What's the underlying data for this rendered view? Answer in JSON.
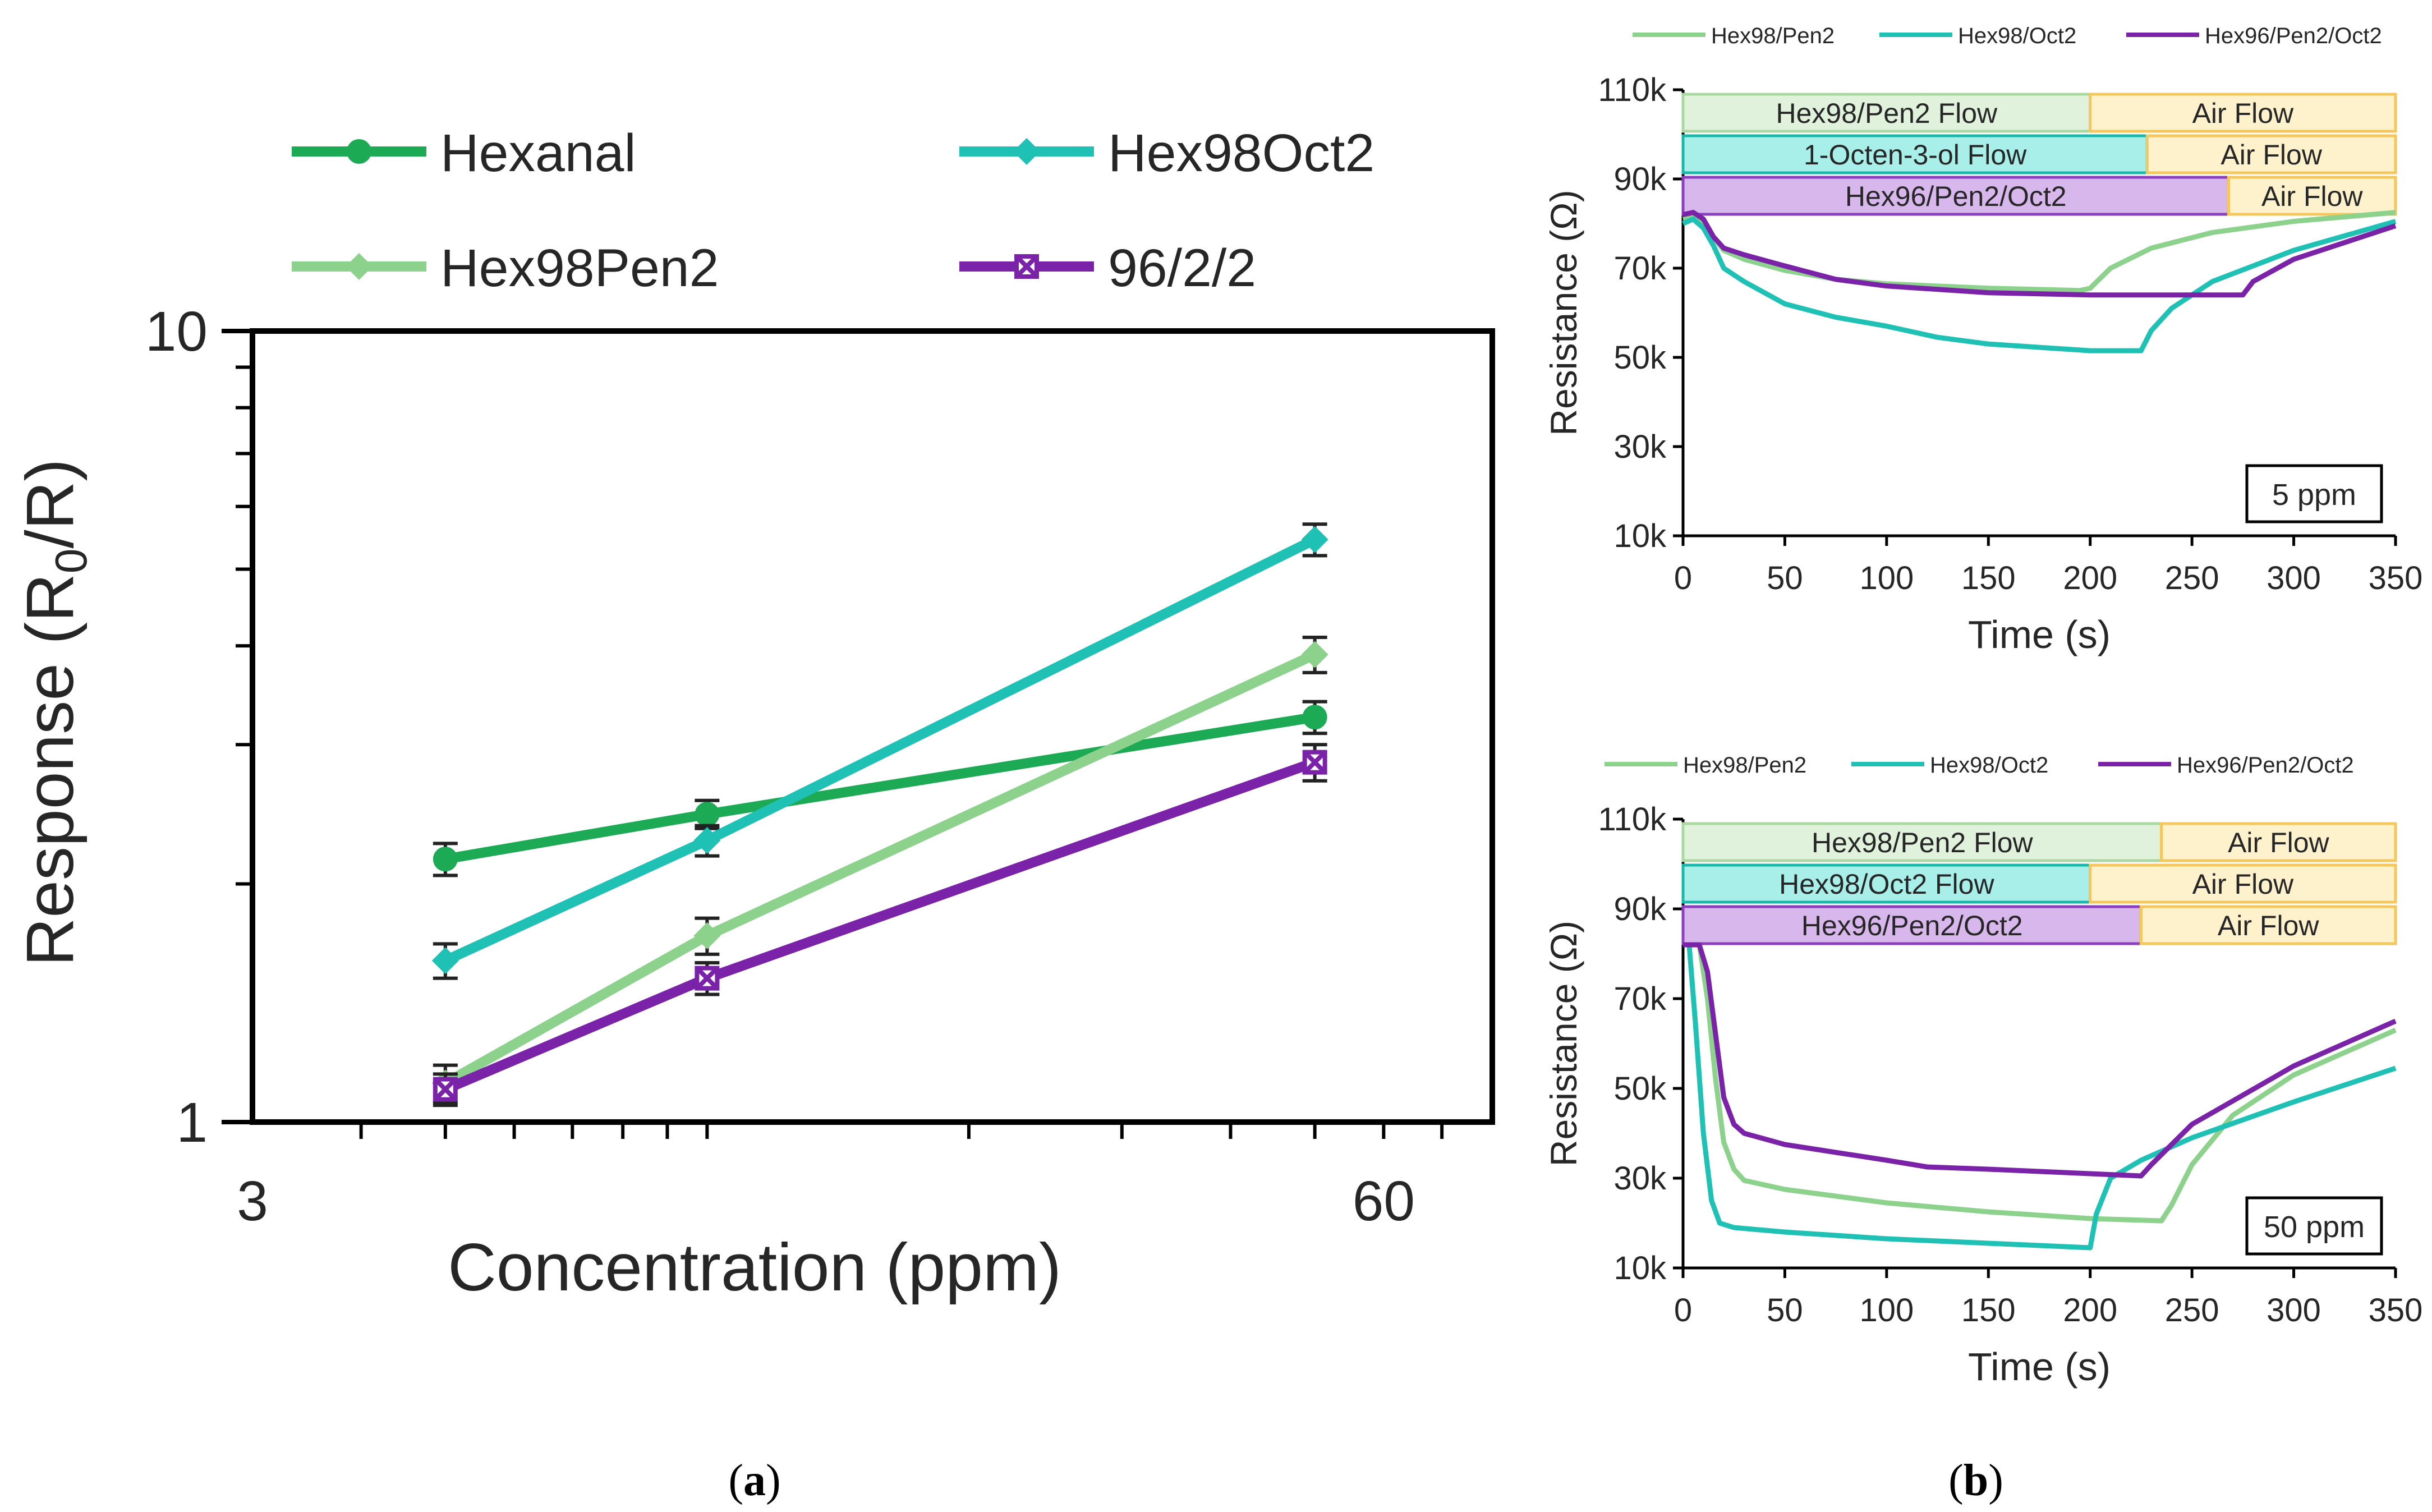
{
  "chart_data": [
    {
      "panel": "a",
      "type": "line",
      "scale": "log-log",
      "xlabel": "Concentration (ppm)",
      "ylabel_main": "Response (R",
      "ylabel_sub": "0",
      "ylabel_tail": "/R)",
      "xlim": [
        3,
        80
      ],
      "ylim": [
        1,
        10
      ],
      "x_ticks": [
        {
          "value": 3,
          "label": "3"
        },
        {
          "value": 60,
          "label": "60"
        }
      ],
      "y_ticks": [
        {
          "value": 1,
          "label": "1"
        },
        {
          "value": 10,
          "label": "10"
        }
      ],
      "series": [
        {
          "name": "Hexanal",
          "color": "#1DAA55",
          "marker": "circle",
          "x": [
            5,
            10,
            50
          ],
          "y": [
            2.15,
            2.45,
            3.25
          ],
          "err": [
            0.1,
            0.1,
            0.15
          ]
        },
        {
          "name": "Hex98Oct2",
          "color": "#1FC1B4",
          "marker": "diamond",
          "x": [
            5,
            10,
            50
          ],
          "y": [
            1.6,
            2.27,
            5.45
          ],
          "err": [
            0.08,
            0.1,
            0.25
          ]
        },
        {
          "name": "Hex98Pen2",
          "color": "#8CD18C",
          "marker": "diamond",
          "x": [
            5,
            10,
            50
          ],
          "y": [
            1.12,
            1.72,
            3.9
          ],
          "err": [
            0.06,
            0.09,
            0.2
          ]
        },
        {
          "name": "96/2/2",
          "color": "#7B23A8",
          "marker": "xbox",
          "x": [
            5,
            10,
            50
          ],
          "y": [
            1.1,
            1.52,
            2.85
          ],
          "err": [
            0.05,
            0.07,
            0.15
          ]
        }
      ]
    },
    {
      "panel": "b-top",
      "type": "line",
      "xlabel": "Time (s)",
      "ylabel": "Resistance (Ω)",
      "xlim": [
        0,
        350
      ],
      "ylim": [
        10000,
        110000
      ],
      "x_ticks": [
        0,
        50,
        100,
        150,
        200,
        250,
        300,
        350
      ],
      "y_ticks": [
        {
          "value": 10000,
          "label": "10k"
        },
        {
          "value": 30000,
          "label": "30k"
        },
        {
          "value": 50000,
          "label": "50k"
        },
        {
          "value": 70000,
          "label": "70k"
        },
        {
          "value": 90000,
          "label": "90k"
        },
        {
          "value": 110000,
          "label": "110k"
        }
      ],
      "annotation": "5 ppm",
      "legend": [
        "Hex98/Pen2",
        "Hex98/Oct2",
        "Hex96/Pen2/Oct2"
      ],
      "flow_bars": [
        {
          "label": "Hex98/Pen2 Flow",
          "end": 200,
          "air_label": "Air Flow",
          "fill": "#E1F2DC",
          "stroke": "#A9D8A0"
        },
        {
          "label": "1-Octen-3-ol Flow",
          "end": 228,
          "air_label": "Air Flow",
          "fill": "#A8EFE9",
          "stroke": "#17B8AA"
        },
        {
          "label": "Hex96/Pen2/Oct2",
          "end": 268,
          "air_label": "Air Flow",
          "fill": "#D7B7EC",
          "stroke": "#8B3FBE"
        }
      ],
      "series": [
        {
          "name": "Hex98/Pen2",
          "color": "#8CD18C",
          "x": [
            0,
            5,
            10,
            15,
            20,
            30,
            50,
            75,
            100,
            150,
            195,
            200,
            210,
            230,
            260,
            300,
            350
          ],
          "y": [
            81000,
            81500,
            80000,
            77000,
            74000,
            72000,
            69500,
            67500,
            66500,
            65500,
            65000,
            65500,
            70000,
            74500,
            78000,
            80500,
            82500
          ]
        },
        {
          "name": "Hex98/Oct2",
          "color": "#1FC1B4",
          "x": [
            0,
            5,
            10,
            15,
            20,
            30,
            50,
            75,
            100,
            125,
            150,
            200,
            225,
            230,
            240,
            260,
            300,
            350
          ],
          "y": [
            80000,
            81000,
            79000,
            75000,
            70000,
            67000,
            62000,
            59000,
            57000,
            54500,
            53000,
            51500,
            51500,
            56000,
            61000,
            67000,
            74000,
            80500
          ]
        },
        {
          "name": "Hex96/Pen2/Oct2",
          "color": "#7B23A8",
          "x": [
            0,
            5,
            10,
            15,
            20,
            30,
            50,
            75,
            100,
            150,
            200,
            250,
            275,
            280,
            300,
            350
          ],
          "y": [
            82000,
            82500,
            81000,
            77000,
            74500,
            73000,
            70500,
            67500,
            66000,
            64500,
            64000,
            64000,
            64000,
            67000,
            72000,
            79500
          ]
        }
      ]
    },
    {
      "panel": "b-bottom",
      "type": "line",
      "xlabel": "Time (s)",
      "ylabel": "Resistance (Ω)",
      "xlim": [
        0,
        350
      ],
      "ylim": [
        10000,
        110000
      ],
      "x_ticks": [
        0,
        50,
        100,
        150,
        200,
        250,
        300,
        350
      ],
      "y_ticks": [
        {
          "value": 10000,
          "label": "10k"
        },
        {
          "value": 30000,
          "label": "30k"
        },
        {
          "value": 50000,
          "label": "50k"
        },
        {
          "value": 70000,
          "label": "70k"
        },
        {
          "value": 90000,
          "label": "90k"
        },
        {
          "value": 110000,
          "label": "110k"
        }
      ],
      "annotation": "50 ppm",
      "legend": [
        "Hex98/Pen2",
        "Hex98/Oct2",
        "Hex96/Pen2/Oct2"
      ],
      "flow_bars": [
        {
          "label": "Hex98/Pen2 Flow",
          "end": 235,
          "air_label": "Air Flow",
          "fill": "#E1F2DC",
          "stroke": "#A9D8A0"
        },
        {
          "label": "Hex98/Oct2 Flow",
          "end": 200,
          "air_label": "Air Flow",
          "fill": "#A8EFE9",
          "stroke": "#17B8AA"
        },
        {
          "label": "Hex96/Pen2/Oct2",
          "end": 225,
          "air_label": "Air Flow",
          "fill": "#D7B7EC",
          "stroke": "#8B3FBE"
        }
      ],
      "series": [
        {
          "name": "Hex98/Pen2",
          "color": "#8CD18C",
          "x": [
            0,
            8,
            12,
            16,
            20,
            25,
            30,
            50,
            100,
            150,
            200,
            235,
            240,
            250,
            270,
            300,
            350
          ],
          "y": [
            82000,
            82000,
            70000,
            52000,
            38000,
            32000,
            29500,
            27500,
            24500,
            22500,
            21000,
            20500,
            24000,
            33000,
            44000,
            53000,
            63000
          ]
        },
        {
          "name": "Hex98/Oct2",
          "color": "#1FC1B4",
          "x": [
            0,
            3,
            6,
            10,
            14,
            18,
            25,
            50,
            100,
            150,
            200,
            203,
            210,
            225,
            250,
            300,
            350
          ],
          "y": [
            82000,
            82000,
            65000,
            40000,
            25000,
            20000,
            19000,
            18000,
            16500,
            15500,
            14500,
            22000,
            30000,
            34000,
            39000,
            47000,
            54500
          ]
        },
        {
          "name": "Hex96/Pen2/Oct2",
          "color": "#7B23A8",
          "x": [
            0,
            8,
            12,
            16,
            20,
            25,
            30,
            50,
            100,
            120,
            150,
            200,
            225,
            230,
            250,
            300,
            350
          ],
          "y": [
            82000,
            82000,
            76000,
            62000,
            48000,
            42000,
            40000,
            37500,
            34000,
            32500,
            32000,
            31000,
            30500,
            33000,
            42000,
            55000,
            65000
          ]
        }
      ]
    }
  ],
  "legend_a": [
    "Hexanal",
    "Hex98Oct2",
    "Hex98Pen2",
    "96/2/2"
  ],
  "captions": {
    "a": "a",
    "b": "b"
  }
}
